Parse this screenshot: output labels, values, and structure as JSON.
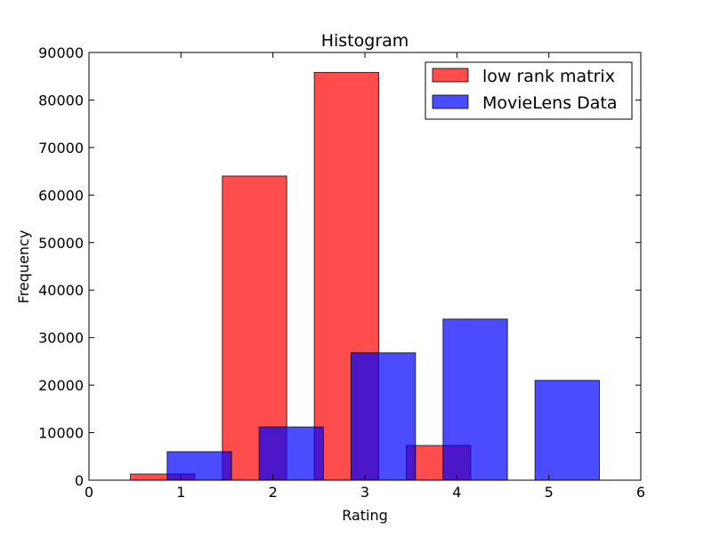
{
  "chart_data": {
    "type": "bar",
    "title": "Histogram",
    "xlabel": "Rating",
    "ylabel": "Frequency",
    "xlim": [
      0,
      6
    ],
    "ylim": [
      0,
      90000
    ],
    "xticks": [
      "0",
      "1",
      "2",
      "3",
      "4",
      "5",
      "6"
    ],
    "yticks": [
      "0",
      "10000",
      "20000",
      "30000",
      "40000",
      "50000",
      "60000",
      "70000",
      "80000",
      "90000"
    ],
    "grid": false,
    "legend_position": "top-right",
    "bar_width": 0.7,
    "series": [
      {
        "name": "low rank matrix",
        "color": "#ff0000",
        "alpha": 0.7,
        "x": [
          1,
          2,
          3,
          4
        ],
        "offset": -0.2,
        "values": [
          1300,
          64000,
          85800,
          7300
        ]
      },
      {
        "name": "MovieLens Data",
        "color": "#0000ff",
        "alpha": 0.7,
        "x": [
          1,
          2,
          3,
          4,
          5
        ],
        "offset": 0.2,
        "values": [
          6000,
          11200,
          26800,
          33900,
          21000
        ]
      }
    ]
  }
}
